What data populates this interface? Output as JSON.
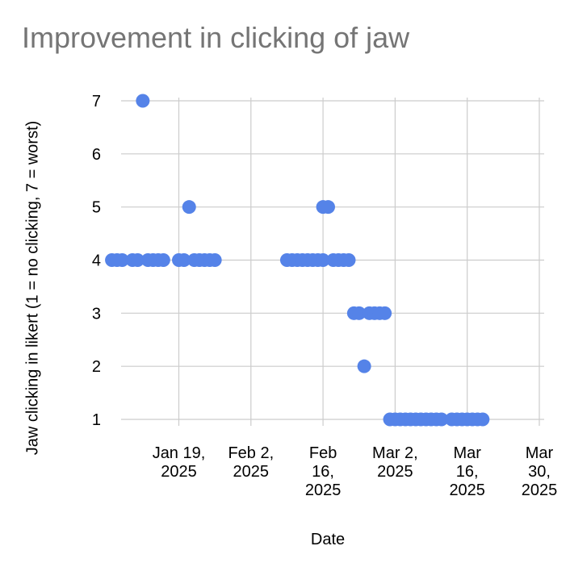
{
  "chart_data": {
    "type": "scatter",
    "title": "Improvement in clicking of jaw",
    "xlabel": "Date",
    "ylabel": "Jaw clicking in likert (1 = no clicking, 7 = worst)",
    "x_ticks": [
      {
        "date": "2025-01-19",
        "label": [
          "Jan 19,",
          "2025"
        ]
      },
      {
        "date": "2025-02-02",
        "label": [
          "Feb 2,",
          "2025"
        ]
      },
      {
        "date": "2025-02-16",
        "label": [
          "Feb",
          "16,",
          "2025"
        ]
      },
      {
        "date": "2025-03-02",
        "label": [
          "Mar 2,",
          "2025"
        ]
      },
      {
        "date": "2025-03-16",
        "label": [
          "Mar",
          "16,",
          "2025"
        ]
      },
      {
        "date": "2025-03-30",
        "label": [
          "Mar",
          "30,",
          "2025"
        ]
      }
    ],
    "xlim": [
      "2025-01-05",
      "2025-03-30"
    ],
    "ylim": [
      1,
      7
    ],
    "y_ticks": [
      "1",
      "2",
      "3",
      "4",
      "5",
      "6",
      "7"
    ],
    "grid": true,
    "colors": {
      "point": "#5583e8",
      "grid": "#cccccc"
    },
    "points": [
      {
        "x": "2025-01-06",
        "y": 4
      },
      {
        "x": "2025-01-07",
        "y": 4
      },
      {
        "x": "2025-01-08",
        "y": 4
      },
      {
        "x": "2025-01-10",
        "y": 4
      },
      {
        "x": "2025-01-11",
        "y": 4
      },
      {
        "x": "2025-01-12",
        "y": 7
      },
      {
        "x": "2025-01-13",
        "y": 4
      },
      {
        "x": "2025-01-14",
        "y": 4
      },
      {
        "x": "2025-01-15",
        "y": 4
      },
      {
        "x": "2025-01-16",
        "y": 4
      },
      {
        "x": "2025-01-19",
        "y": 4
      },
      {
        "x": "2025-01-20",
        "y": 4
      },
      {
        "x": "2025-01-21",
        "y": 5
      },
      {
        "x": "2025-01-22",
        "y": 4
      },
      {
        "x": "2025-01-23",
        "y": 4
      },
      {
        "x": "2025-01-24",
        "y": 4
      },
      {
        "x": "2025-01-25",
        "y": 4
      },
      {
        "x": "2025-01-26",
        "y": 4
      },
      {
        "x": "2025-02-09",
        "y": 4
      },
      {
        "x": "2025-02-10",
        "y": 4
      },
      {
        "x": "2025-02-11",
        "y": 4
      },
      {
        "x": "2025-02-12",
        "y": 4
      },
      {
        "x": "2025-02-13",
        "y": 4
      },
      {
        "x": "2025-02-14",
        "y": 4
      },
      {
        "x": "2025-02-15",
        "y": 4
      },
      {
        "x": "2025-02-16",
        "y": 4
      },
      {
        "x": "2025-02-16",
        "y": 5
      },
      {
        "x": "2025-02-17",
        "y": 5
      },
      {
        "x": "2025-02-18",
        "y": 4
      },
      {
        "x": "2025-02-19",
        "y": 4
      },
      {
        "x": "2025-02-20",
        "y": 4
      },
      {
        "x": "2025-02-21",
        "y": 4
      },
      {
        "x": "2025-02-22",
        "y": 3
      },
      {
        "x": "2025-02-23",
        "y": 3
      },
      {
        "x": "2025-02-24",
        "y": 2
      },
      {
        "x": "2025-02-25",
        "y": 3
      },
      {
        "x": "2025-02-26",
        "y": 3
      },
      {
        "x": "2025-02-27",
        "y": 3
      },
      {
        "x": "2025-02-28",
        "y": 3
      },
      {
        "x": "2025-03-01",
        "y": 1
      },
      {
        "x": "2025-03-02",
        "y": 1
      },
      {
        "x": "2025-03-03",
        "y": 1
      },
      {
        "x": "2025-03-04",
        "y": 1
      },
      {
        "x": "2025-03-05",
        "y": 1
      },
      {
        "x": "2025-03-06",
        "y": 1
      },
      {
        "x": "2025-03-07",
        "y": 1
      },
      {
        "x": "2025-03-08",
        "y": 1
      },
      {
        "x": "2025-03-09",
        "y": 1
      },
      {
        "x": "2025-03-10",
        "y": 1
      },
      {
        "x": "2025-03-11",
        "y": 1
      },
      {
        "x": "2025-03-13",
        "y": 1
      },
      {
        "x": "2025-03-14",
        "y": 1
      },
      {
        "x": "2025-03-15",
        "y": 1
      },
      {
        "x": "2025-03-16",
        "y": 1
      },
      {
        "x": "2025-03-17",
        "y": 1
      },
      {
        "x": "2025-03-18",
        "y": 1
      },
      {
        "x": "2025-03-19",
        "y": 1
      }
    ]
  }
}
